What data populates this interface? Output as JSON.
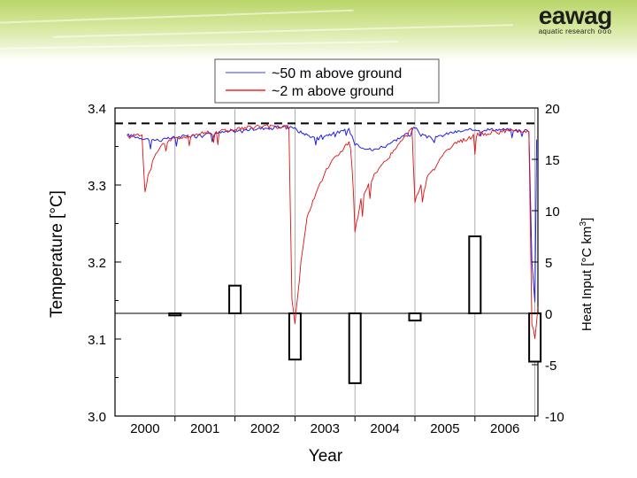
{
  "header": {
    "logo_word": "eawag",
    "logo_sub": "aquatic research",
    "logo_dots": "ooo"
  },
  "chart_data": {
    "type": "line",
    "title": "",
    "xlabel": "Year",
    "ylabel_left": "Temperature [°C]",
    "ylabel_right_main": "Heat Input  [°C km",
    "ylabel_right_sup": "3",
    "ylabel_right_end": "]",
    "xlim": [
      2000,
      2007.05
    ],
    "ylim_left": [
      3.0,
      3.4
    ],
    "ylim_right": [
      -10,
      20
    ],
    "x_ticks": [
      {
        "value": 2000.5,
        "label": "2000"
      },
      {
        "value": 2001.5,
        "label": "2001"
      },
      {
        "value": 2002.5,
        "label": "2002"
      },
      {
        "value": 2003.5,
        "label": "2003"
      },
      {
        "value": 2004.5,
        "label": "2004"
      },
      {
        "value": 2005.5,
        "label": "2005"
      },
      {
        "value": 2006.5,
        "label": "2006"
      }
    ],
    "y_ticks_left": [
      {
        "value": 3.0,
        "label": "3.0"
      },
      {
        "value": 3.1,
        "label": "3.1"
      },
      {
        "value": 3.2,
        "label": "3.2"
      },
      {
        "value": 3.3,
        "label": "3.3"
      },
      {
        "value": 3.4,
        "label": "3.4"
      }
    ],
    "y_ticks_right": [
      {
        "value": -10,
        "label": "-10"
      },
      {
        "value": -5,
        "label": "-5"
      },
      {
        "value": 0,
        "label": "0"
      },
      {
        "value": 5,
        "label": "5"
      },
      {
        "value": 10,
        "label": "10"
      },
      {
        "value": 15,
        "label": "15"
      },
      {
        "value": 20,
        "label": "20"
      }
    ],
    "year_boundaries": [
      2001,
      2002,
      2003,
      2004,
      2005,
      2006,
      2007
    ],
    "reference_line_left": 3.38,
    "legend": [
      {
        "label": "~50 m above ground",
        "color": "#3a3aff"
      },
      {
        "label": "~2 m above ground",
        "color": "#ff2020"
      }
    ],
    "series": [
      {
        "name": "~50 m above ground",
        "color": "#2020e0",
        "x": [
          2000.2,
          2000.5,
          2000.75,
          2001.0,
          2001.5,
          2002.0,
          2002.5,
          2002.95,
          2003.05,
          2003.3,
          2003.6,
          2003.9,
          2004.0,
          2004.1,
          2004.3,
          2004.6,
          2004.9,
          2005.0,
          2005.1,
          2005.3,
          2005.6,
          2006.0,
          2006.5,
          2006.9,
          2006.95,
          2007.0,
          2007.03
        ],
        "y": [
          3.365,
          3.36,
          3.358,
          3.362,
          3.366,
          3.37,
          3.374,
          3.376,
          3.37,
          3.362,
          3.366,
          3.372,
          3.355,
          3.35,
          3.345,
          3.355,
          3.368,
          3.375,
          3.365,
          3.36,
          3.368,
          3.372,
          3.372,
          3.37,
          3.2,
          3.15,
          3.36
        ]
      },
      {
        "name": "~2 m above ground",
        "color": "#e01010",
        "x": [
          2000.2,
          2000.45,
          2000.5,
          2000.6,
          2000.8,
          2001.0,
          2001.5,
          2002.0,
          2002.4,
          2002.9,
          2002.95,
          2003.0,
          2003.1,
          2003.2,
          2003.4,
          2003.6,
          2003.9,
          2003.95,
          2004.0,
          2004.1,
          2004.3,
          2004.6,
          2004.9,
          2004.95,
          2005.0,
          2005.1,
          2005.3,
          2005.6,
          2006.0,
          2006.5,
          2006.9,
          2006.95,
          2007.0,
          2007.05
        ],
        "y": [
          3.365,
          3.365,
          3.29,
          3.33,
          3.355,
          3.36,
          3.368,
          3.372,
          3.376,
          3.375,
          3.15,
          3.12,
          3.2,
          3.26,
          3.3,
          3.33,
          3.355,
          3.34,
          3.24,
          3.28,
          3.31,
          3.34,
          3.368,
          3.372,
          3.28,
          3.3,
          3.32,
          3.35,
          3.365,
          3.37,
          3.37,
          3.12,
          3.1,
          3.14
        ]
      }
    ],
    "heat_input_bars": [
      {
        "year": 2000,
        "value": -0.2
      },
      {
        "year": 2001,
        "value": 2.7
      },
      {
        "year": 2002,
        "value": -4.5
      },
      {
        "year": 2003,
        "value": -6.8
      },
      {
        "year": 2004,
        "value": -0.7
      },
      {
        "year": 2005,
        "value": 7.5
      },
      {
        "year": 2006,
        "value": -4.7
      }
    ]
  }
}
